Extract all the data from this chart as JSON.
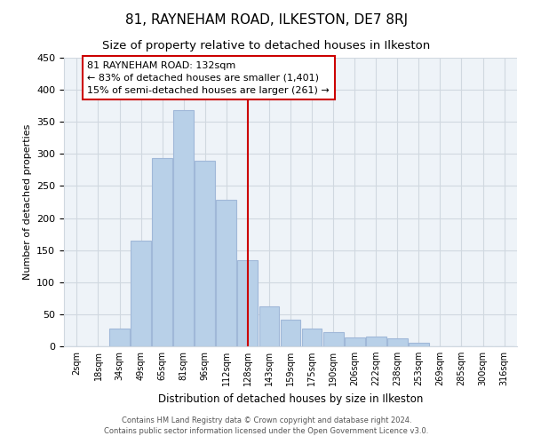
{
  "title": "81, RAYNEHAM ROAD, ILKESTON, DE7 8RJ",
  "subtitle": "Size of property relative to detached houses in Ilkeston",
  "xlabel": "Distribution of detached houses by size in Ilkeston",
  "ylabel": "Number of detached properties",
  "bar_labels": [
    "2sqm",
    "18sqm",
    "34sqm",
    "49sqm",
    "65sqm",
    "81sqm",
    "96sqm",
    "112sqm",
    "128sqm",
    "143sqm",
    "159sqm",
    "175sqm",
    "190sqm",
    "206sqm",
    "222sqm",
    "238sqm",
    "253sqm",
    "269sqm",
    "285sqm",
    "300sqm",
    "316sqm"
  ],
  "bar_heights": [
    0,
    0,
    28,
    165,
    293,
    368,
    289,
    229,
    134,
    62,
    42,
    28,
    22,
    14,
    15,
    12,
    5,
    0,
    0,
    0,
    0
  ],
  "bar_color": "#b8d0e8",
  "bar_edge_color": "#a0b8d8",
  "vline_x": 8,
  "vline_color": "#cc0000",
  "annotation_title": "81 RAYNEHAM ROAD: 132sqm",
  "annotation_line1": "← 83% of detached houses are smaller (1,401)",
  "annotation_line2": "15% of semi-detached houses are larger (261) →",
  "annotation_box_color": "#ffffff",
  "annotation_box_edge": "#cc0000",
  "ylim": [
    0,
    450
  ],
  "yticks": [
    0,
    50,
    100,
    150,
    200,
    250,
    300,
    350,
    400,
    450
  ],
  "footer1": "Contains HM Land Registry data © Crown copyright and database right 2024.",
  "footer2": "Contains public sector information licensed under the Open Government Licence v3.0.",
  "bg_color": "#ffffff",
  "grid_color": "#d0d8e0",
  "title_fontsize": 11,
  "subtitle_fontsize": 9.5
}
